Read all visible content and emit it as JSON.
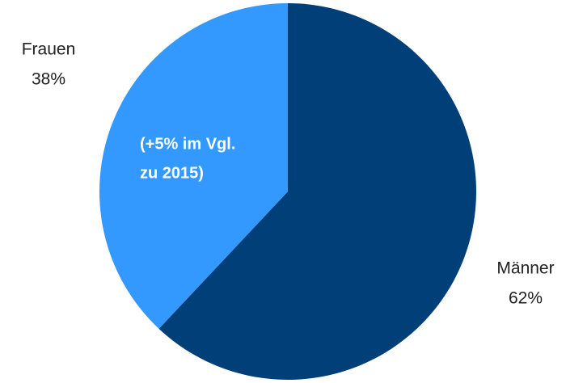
{
  "chart_data": {
    "type": "pie",
    "categories": [
      "Männer",
      "Frauen"
    ],
    "values": [
      62,
      38
    ],
    "value_labels": [
      "62%",
      "38%"
    ],
    "colors": [
      "#003f78",
      "#3399ff"
    ],
    "annotation": [
      "(+5% im Vgl.",
      "zu 2015)"
    ]
  }
}
